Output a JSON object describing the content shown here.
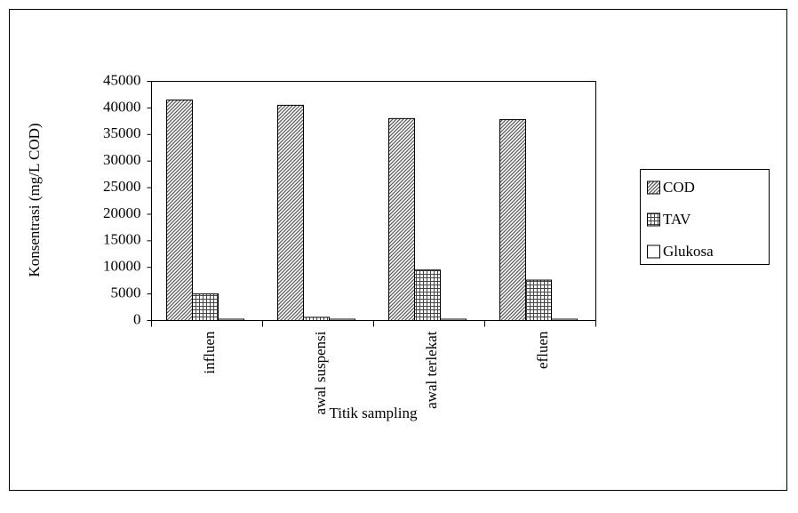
{
  "chart_data": {
    "type": "bar",
    "categories": [
      "influen",
      "awal suspensi",
      "awal terlekat",
      "efluen"
    ],
    "series": [
      {
        "name": "COD",
        "color": "#9a9a9a",
        "values": [
          41500,
          40500,
          38000,
          37800
        ]
      },
      {
        "name": "TAV",
        "color": "#707070",
        "values": [
          5000,
          600,
          9500,
          7600
        ]
      },
      {
        "name": "Glukosa",
        "color": "#ffffff",
        "values": [
          250,
          250,
          250,
          250
        ]
      }
    ],
    "ylabel": "Konsentrasi (mg/L COD)",
    "xlabel": "Titik sampling",
    "ylim": [
      0,
      45000
    ],
    "yticks": [
      0,
      5000,
      10000,
      15000,
      20000,
      25000,
      30000,
      35000,
      40000,
      45000
    ],
    "legend": "right",
    "grid": false
  }
}
